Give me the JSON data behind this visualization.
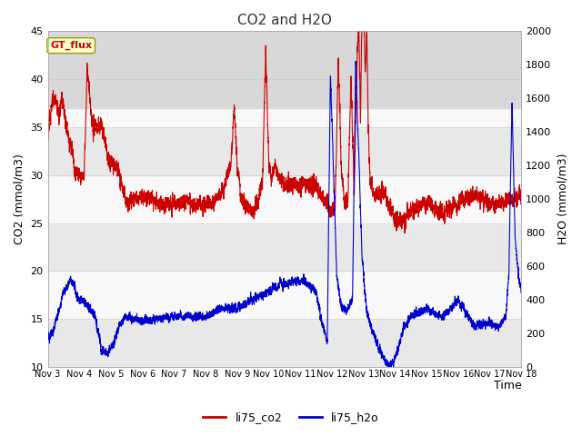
{
  "title": "CO2 and H2O",
  "xlabel": "Time",
  "ylabel_left": "CO2 (mmol/m3)",
  "ylabel_right": "H2O (mmol/m3)",
  "xlim": [
    0,
    15
  ],
  "ylim_left": [
    10,
    45
  ],
  "ylim_right": [
    0,
    2000
  ],
  "xtick_labels": [
    "Nov 3",
    "Nov 4",
    "Nov 5",
    "Nov 6",
    "Nov 7",
    "Nov 8",
    "Nov 9",
    "Nov 10",
    "Nov 11",
    "Nov 12",
    "Nov 13",
    "Nov 14",
    "Nov 15",
    "Nov 16",
    "Nov 17",
    "Nov 18"
  ],
  "xtick_positions": [
    0,
    1,
    2,
    3,
    4,
    5,
    6,
    7,
    8,
    9,
    10,
    11,
    12,
    13,
    14,
    15
  ],
  "co2_color": "#cc0000",
  "h2o_color": "#0000cc",
  "line_width": 0.8,
  "annotation_text": "GT_flux",
  "annotation_color": "#cc0000",
  "annotation_bg": "#ffffcc",
  "background_color": "#e8e8e8",
  "band_y1": 37,
  "band_y2": 45,
  "band_color": "#d0d0d0",
  "yticks_left": [
    10,
    15,
    20,
    25,
    30,
    35,
    40,
    45
  ],
  "yticks_right": [
    0,
    200,
    400,
    600,
    800,
    1000,
    1200,
    1400,
    1600,
    1800,
    2000
  ],
  "legend_labels": [
    "li75_co2",
    "li75_h2o"
  ]
}
